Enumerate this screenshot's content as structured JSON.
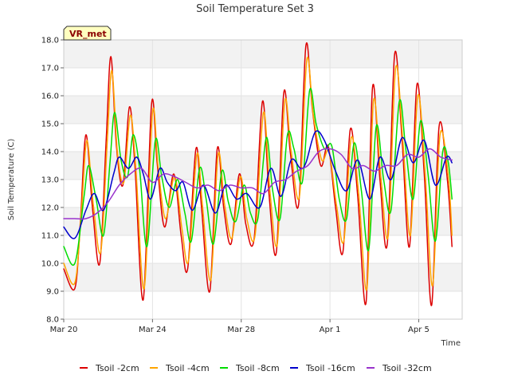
{
  "chart_data": {
    "type": "line",
    "title": "Soil Temperature Set 3",
    "xlabel": "Time",
    "ylabel": "Soil Temperature (C)",
    "badge": "VR_met",
    "x_range": [
      "2024-03-20",
      "2024-04-06T23:00"
    ],
    "ylim": [
      8.0,
      18.0
    ],
    "yticks": [
      "8.0",
      "9.0",
      "10.0",
      "11.0",
      "12.0",
      "13.0",
      "14.0",
      "15.0",
      "16.0",
      "17.0",
      "18.0"
    ],
    "xticks": [
      {
        "label": "Mar 20",
        "date": "2024-03-20"
      },
      {
        "label": "Mar 24",
        "date": "2024-03-24"
      },
      {
        "label": "Mar 28",
        "date": "2024-03-28"
      },
      {
        "label": "Apr 1",
        "date": "2024-04-01"
      },
      {
        "label": "Apr 5",
        "date": "2024-04-05"
      }
    ],
    "grid": true,
    "legend_position": "bottom",
    "series": [
      {
        "name": "Tsoil -2cm",
        "color": "#dd0000",
        "points": [
          [
            "2024-03-20T00:00",
            9.8
          ],
          [
            "2024-03-20T12:00",
            9.1
          ],
          [
            "2024-03-20T18:00",
            11.5
          ],
          [
            "2024-03-21T00:00",
            14.6
          ],
          [
            "2024-03-21T07:00",
            12.0
          ],
          [
            "2024-03-21T15:00",
            10.0
          ],
          [
            "2024-03-21T22:00",
            14.5
          ],
          [
            "2024-03-22T03:00",
            17.4
          ],
          [
            "2024-03-22T09:00",
            14.2
          ],
          [
            "2024-03-22T16:00",
            12.8
          ],
          [
            "2024-03-22T23:00",
            15.6
          ],
          [
            "2024-03-23T05:00",
            13.5
          ],
          [
            "2024-03-23T14:00",
            8.7
          ],
          [
            "2024-03-23T23:00",
            15.7
          ],
          [
            "2024-03-24T05:00",
            13.6
          ],
          [
            "2024-03-24T13:00",
            11.3
          ],
          [
            "2024-03-24T23:00",
            13.2
          ],
          [
            "2024-03-25T07:00",
            11.0
          ],
          [
            "2024-03-25T14:00",
            9.8
          ],
          [
            "2024-03-25T23:00",
            14.1
          ],
          [
            "2024-03-26T05:00",
            12.0
          ],
          [
            "2024-03-26T14:00",
            9.0
          ],
          [
            "2024-03-26T22:00",
            14.1
          ],
          [
            "2024-03-27T05:00",
            12.0
          ],
          [
            "2024-03-27T13:00",
            10.7
          ],
          [
            "2024-03-27T22:00",
            13.2
          ],
          [
            "2024-03-28T05:00",
            11.4
          ],
          [
            "2024-03-28T14:00",
            10.9
          ],
          [
            "2024-03-28T23:00",
            15.8
          ],
          [
            "2024-03-29T06:00",
            12.5
          ],
          [
            "2024-03-29T14:00",
            10.4
          ],
          [
            "2024-03-29T22:00",
            16.1
          ],
          [
            "2024-03-30T05:00",
            14.0
          ],
          [
            "2024-03-30T14:00",
            12.1
          ],
          [
            "2024-03-30T22:00",
            17.8
          ],
          [
            "2024-03-31T05:00",
            15.5
          ],
          [
            "2024-03-31T14:00",
            13.5
          ],
          [
            "2024-03-31T22:00",
            14.2
          ],
          [
            "2024-04-01T06:00",
            12.0
          ],
          [
            "2024-04-01T14:00",
            10.4
          ],
          [
            "2024-04-01T22:00",
            14.8
          ],
          [
            "2024-04-02T06:00",
            12.4
          ],
          [
            "2024-04-02T15:00",
            8.6
          ],
          [
            "2024-04-02T22:00",
            16.3
          ],
          [
            "2024-04-03T06:00",
            13.0
          ],
          [
            "2024-04-03T14:00",
            10.7
          ],
          [
            "2024-04-03T22:00",
            17.5
          ],
          [
            "2024-04-04T06:00",
            14.4
          ],
          [
            "2024-04-04T14:00",
            10.6
          ],
          [
            "2024-04-04T22:00",
            16.4
          ],
          [
            "2024-04-05T06:00",
            13.2
          ],
          [
            "2024-04-05T14:00",
            8.5
          ],
          [
            "2024-04-05T22:00",
            14.9
          ],
          [
            "2024-04-06T07:00",
            13.0
          ],
          [
            "2024-04-06T12:00",
            10.6
          ]
        ]
      },
      {
        "name": "Tsoil -4cm",
        "color": "#ffa500",
        "points": [
          [
            "2024-03-20T00:00",
            10.0
          ],
          [
            "2024-03-20T12:00",
            9.3
          ],
          [
            "2024-03-20T19:00",
            11.8
          ],
          [
            "2024-03-21T01:00",
            14.4
          ],
          [
            "2024-03-21T08:00",
            12.1
          ],
          [
            "2024-03-21T16:00",
            10.4
          ],
          [
            "2024-03-21T23:00",
            14.3
          ],
          [
            "2024-03-22T04:00",
            16.9
          ],
          [
            "2024-03-22T10:00",
            14.0
          ],
          [
            "2024-03-22T17:00",
            12.9
          ],
          [
            "2024-03-23T00:00",
            15.3
          ],
          [
            "2024-03-23T06:00",
            13.4
          ],
          [
            "2024-03-23T15:00",
            9.1
          ],
          [
            "2024-03-24T00:00",
            15.4
          ],
          [
            "2024-03-24T06:00",
            13.5
          ],
          [
            "2024-03-24T14:00",
            11.6
          ],
          [
            "2024-03-25T00:00",
            13.1
          ],
          [
            "2024-03-25T08:00",
            11.2
          ],
          [
            "2024-03-25T15:00",
            10.1
          ],
          [
            "2024-03-26T00:00",
            13.9
          ],
          [
            "2024-03-26T06:00",
            12.1
          ],
          [
            "2024-03-26T15:00",
            9.4
          ],
          [
            "2024-03-26T23:00",
            13.9
          ],
          [
            "2024-03-27T06:00",
            12.1
          ],
          [
            "2024-03-27T14:00",
            10.9
          ],
          [
            "2024-03-27T23:00",
            13.1
          ],
          [
            "2024-03-28T06:00",
            11.6
          ],
          [
            "2024-03-28T15:00",
            11.0
          ],
          [
            "2024-03-29T00:00",
            15.4
          ],
          [
            "2024-03-29T07:00",
            12.6
          ],
          [
            "2024-03-29T15:00",
            10.7
          ],
          [
            "2024-03-29T23:00",
            15.8
          ],
          [
            "2024-03-30T06:00",
            14.0
          ],
          [
            "2024-03-30T15:00",
            12.4
          ],
          [
            "2024-03-30T23:00",
            17.3
          ],
          [
            "2024-03-31T06:00",
            15.3
          ],
          [
            "2024-03-31T15:00",
            13.7
          ],
          [
            "2024-03-31T23:00",
            14.0
          ],
          [
            "2024-04-01T07:00",
            12.1
          ],
          [
            "2024-04-01T15:00",
            10.8
          ],
          [
            "2024-04-01T23:00",
            14.5
          ],
          [
            "2024-04-02T07:00",
            12.5
          ],
          [
            "2024-04-02T16:00",
            9.1
          ],
          [
            "2024-04-02T23:00",
            15.8
          ],
          [
            "2024-04-03T07:00",
            13.1
          ],
          [
            "2024-04-03T15:00",
            11.0
          ],
          [
            "2024-04-03T23:00",
            17.0
          ],
          [
            "2024-04-04T07:00",
            14.3
          ],
          [
            "2024-04-04T15:00",
            11.0
          ],
          [
            "2024-04-04T23:00",
            16.0
          ],
          [
            "2024-04-05T07:00",
            13.2
          ],
          [
            "2024-04-05T15:00",
            9.2
          ],
          [
            "2024-04-05T23:00",
            14.6
          ],
          [
            "2024-04-06T08:00",
            13.1
          ],
          [
            "2024-04-06T12:00",
            11.0
          ]
        ]
      },
      {
        "name": "Tsoil -8cm",
        "color": "#00dd00",
        "points": [
          [
            "2024-03-20T00:00",
            10.6
          ],
          [
            "2024-03-20T12:00",
            10.0
          ],
          [
            "2024-03-20T22:00",
            12.4
          ],
          [
            "2024-03-21T03:00",
            13.5
          ],
          [
            "2024-03-21T11:00",
            12.3
          ],
          [
            "2024-03-21T19:00",
            11.0
          ],
          [
            "2024-03-22T02:00",
            13.6
          ],
          [
            "2024-03-22T07:00",
            15.4
          ],
          [
            "2024-03-22T14:00",
            13.7
          ],
          [
            "2024-03-22T21:00",
            13.1
          ],
          [
            "2024-03-23T03:00",
            14.6
          ],
          [
            "2024-03-23T10:00",
            13.4
          ],
          [
            "2024-03-23T18:00",
            10.6
          ],
          [
            "2024-03-24T03:00",
            14.4
          ],
          [
            "2024-03-24T10:00",
            13.1
          ],
          [
            "2024-03-24T18:00",
            12.0
          ],
          [
            "2024-03-25T03:00",
            13.0
          ],
          [
            "2024-03-25T11:00",
            11.8
          ],
          [
            "2024-03-25T18:00",
            10.8
          ],
          [
            "2024-03-26T03:00",
            13.4
          ],
          [
            "2024-03-26T10:00",
            12.3
          ],
          [
            "2024-03-26T18:00",
            10.7
          ],
          [
            "2024-03-27T03:00",
            13.3
          ],
          [
            "2024-03-27T10:00",
            12.2
          ],
          [
            "2024-03-27T18:00",
            11.5
          ],
          [
            "2024-03-28T03:00",
            12.8
          ],
          [
            "2024-03-28T10:00",
            11.8
          ],
          [
            "2024-03-28T18:00",
            11.6
          ],
          [
            "2024-03-29T03:00",
            14.5
          ],
          [
            "2024-03-29T10:00",
            12.6
          ],
          [
            "2024-03-29T18:00",
            11.6
          ],
          [
            "2024-03-30T02:00",
            14.6
          ],
          [
            "2024-03-30T09:00",
            14.1
          ],
          [
            "2024-03-30T18:00",
            12.9
          ],
          [
            "2024-03-31T02:00",
            16.2
          ],
          [
            "2024-03-31T09:00",
            15.0
          ],
          [
            "2024-03-31T18:00",
            14.1
          ],
          [
            "2024-04-01T02:00",
            14.2
          ],
          [
            "2024-04-01T10:00",
            12.3
          ],
          [
            "2024-04-01T18:00",
            11.6
          ],
          [
            "2024-04-02T02:00",
            14.3
          ],
          [
            "2024-04-02T10:00",
            12.6
          ],
          [
            "2024-04-02T18:00",
            10.5
          ],
          [
            "2024-04-03T02:00",
            14.9
          ],
          [
            "2024-04-03T10:00",
            13.0
          ],
          [
            "2024-04-03T18:00",
            11.9
          ],
          [
            "2024-04-04T03:00",
            15.8
          ],
          [
            "2024-04-04T10:00",
            14.1
          ],
          [
            "2024-04-04T18:00",
            12.3
          ],
          [
            "2024-04-05T02:00",
            15.1
          ],
          [
            "2024-04-05T10:00",
            13.2
          ],
          [
            "2024-04-05T18:00",
            10.8
          ],
          [
            "2024-04-06T02:00",
            14.0
          ],
          [
            "2024-04-06T08:00",
            13.6
          ],
          [
            "2024-04-06T12:00",
            12.3
          ]
        ]
      },
      {
        "name": "Tsoil -16cm",
        "color": "#0000cc",
        "points": [
          [
            "2024-03-20T00:00",
            11.3
          ],
          [
            "2024-03-20T12:00",
            10.9
          ],
          [
            "2024-03-21T00:00",
            11.9
          ],
          [
            "2024-03-21T09:00",
            12.5
          ],
          [
            "2024-03-21T19:00",
            11.9
          ],
          [
            "2024-03-22T06:00",
            13.2
          ],
          [
            "2024-03-22T12:00",
            13.8
          ],
          [
            "2024-03-22T22:00",
            13.4
          ],
          [
            "2024-03-23T07:00",
            13.8
          ],
          [
            "2024-03-23T14:00",
            13.2
          ],
          [
            "2024-03-23T22:00",
            12.3
          ],
          [
            "2024-03-24T08:00",
            13.4
          ],
          [
            "2024-03-24T16:00",
            12.9
          ],
          [
            "2024-03-25T01:00",
            12.6
          ],
          [
            "2024-03-25T09:00",
            12.9
          ],
          [
            "2024-03-25T19:00",
            11.9
          ],
          [
            "2024-03-26T07:00",
            12.8
          ],
          [
            "2024-03-26T20:00",
            11.8
          ],
          [
            "2024-03-27T07:00",
            12.8
          ],
          [
            "2024-03-27T19:00",
            12.3
          ],
          [
            "2024-03-28T06:00",
            12.5
          ],
          [
            "2024-03-28T20:00",
            12.0
          ],
          [
            "2024-03-29T08:00",
            13.4
          ],
          [
            "2024-03-29T19:00",
            12.4
          ],
          [
            "2024-03-30T06:00",
            13.7
          ],
          [
            "2024-03-30T16:00",
            13.4
          ],
          [
            "2024-03-30T22:00",
            13.6
          ],
          [
            "2024-03-31T08:00",
            14.7
          ],
          [
            "2024-03-31T18:00",
            14.4
          ],
          [
            "2024-04-01T06:00",
            13.3
          ],
          [
            "2024-04-01T18:00",
            12.6
          ],
          [
            "2024-04-02T06:00",
            13.7
          ],
          [
            "2024-04-02T19:00",
            12.3
          ],
          [
            "2024-04-03T06:00",
            13.8
          ],
          [
            "2024-04-03T18:00",
            13.0
          ],
          [
            "2024-04-04T06:00",
            14.5
          ],
          [
            "2024-04-04T18:00",
            13.6
          ],
          [
            "2024-04-05T06:00",
            14.4
          ],
          [
            "2024-04-05T18:00",
            12.8
          ],
          [
            "2024-04-06T06:00",
            13.8
          ],
          [
            "2024-04-06T12:00",
            13.6
          ]
        ]
      },
      {
        "name": "Tsoil -32cm",
        "color": "#9933cc",
        "points": [
          [
            "2024-03-20T00:00",
            11.6
          ],
          [
            "2024-03-20T12:00",
            11.6
          ],
          [
            "2024-03-21T00:00",
            11.6
          ],
          [
            "2024-03-21T12:00",
            11.8
          ],
          [
            "2024-03-22T00:00",
            12.2
          ],
          [
            "2024-03-22T12:00",
            12.8
          ],
          [
            "2024-03-23T00:00",
            13.2
          ],
          [
            "2024-03-23T12:00",
            13.4
          ],
          [
            "2024-03-24T00:00",
            12.9
          ],
          [
            "2024-03-24T12:00",
            13.2
          ],
          [
            "2024-03-25T00:00",
            13.1
          ],
          [
            "2024-03-25T12:00",
            12.9
          ],
          [
            "2024-03-26T00:00",
            12.7
          ],
          [
            "2024-03-26T12:00",
            12.8
          ],
          [
            "2024-03-27T00:00",
            12.6
          ],
          [
            "2024-03-27T12:00",
            12.8
          ],
          [
            "2024-03-28T00:00",
            12.7
          ],
          [
            "2024-03-28T12:00",
            12.7
          ],
          [
            "2024-03-29T00:00",
            12.5
          ],
          [
            "2024-03-29T12:00",
            12.9
          ],
          [
            "2024-03-30T00:00",
            13.0
          ],
          [
            "2024-03-30T12:00",
            13.3
          ],
          [
            "2024-03-31T00:00",
            13.5
          ],
          [
            "2024-03-31T12:00",
            14.0
          ],
          [
            "2024-04-01T00:00",
            14.1
          ],
          [
            "2024-04-01T12:00",
            13.9
          ],
          [
            "2024-04-02T00:00",
            13.4
          ],
          [
            "2024-04-02T12:00",
            13.5
          ],
          [
            "2024-04-03T00:00",
            13.3
          ],
          [
            "2024-04-03T12:00",
            13.5
          ],
          [
            "2024-04-04T00:00",
            13.5
          ],
          [
            "2024-04-04T12:00",
            13.9
          ],
          [
            "2024-04-05T00:00",
            13.8
          ],
          [
            "2024-04-05T12:00",
            14.1
          ],
          [
            "2024-04-06T00:00",
            13.8
          ],
          [
            "2024-04-06T12:00",
            13.7
          ]
        ]
      }
    ]
  }
}
